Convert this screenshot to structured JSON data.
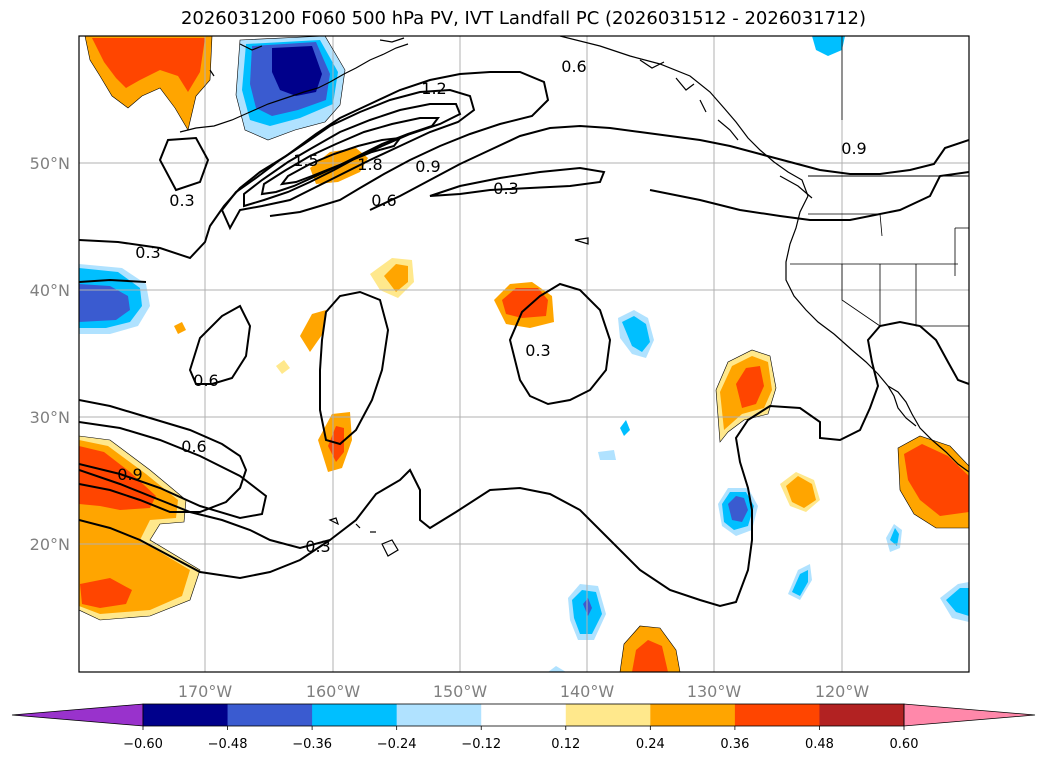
{
  "title": "2026031200 F060 500 hPa PV, IVT Landfall PC (2026031512 - 2026031712)",
  "lat_labels": [
    "50°N",
    "40°N",
    "30°N",
    "20°N"
  ],
  "lon_labels": [
    "170°W",
    "160°W",
    "150°W",
    "140°W",
    "130°W",
    "120°W"
  ],
  "contour_labels": [
    "0.6",
    "1.2",
    "0.9",
    "1.5",
    "1.8",
    "0.9",
    "0.6",
    "0.3",
    "0.3",
    "0.3",
    "0.3",
    "0.6",
    "0.6",
    "0.9",
    "0.3"
  ],
  "colorbar": {
    "ticks": [
      "−0.60",
      "−0.48",
      "−0.36",
      "−0.24",
      "−0.12",
      "0.12",
      "0.24",
      "0.36",
      "0.48",
      "0.60"
    ],
    "colors": [
      "#9932cc",
      "#00008b",
      "#3a5bd0",
      "#00bfff",
      "#b0e2ff",
      "#ffffff",
      "#ffe88c",
      "#ffa500",
      "#ff4500",
      "#b22222",
      "#ff88aa"
    ]
  }
}
